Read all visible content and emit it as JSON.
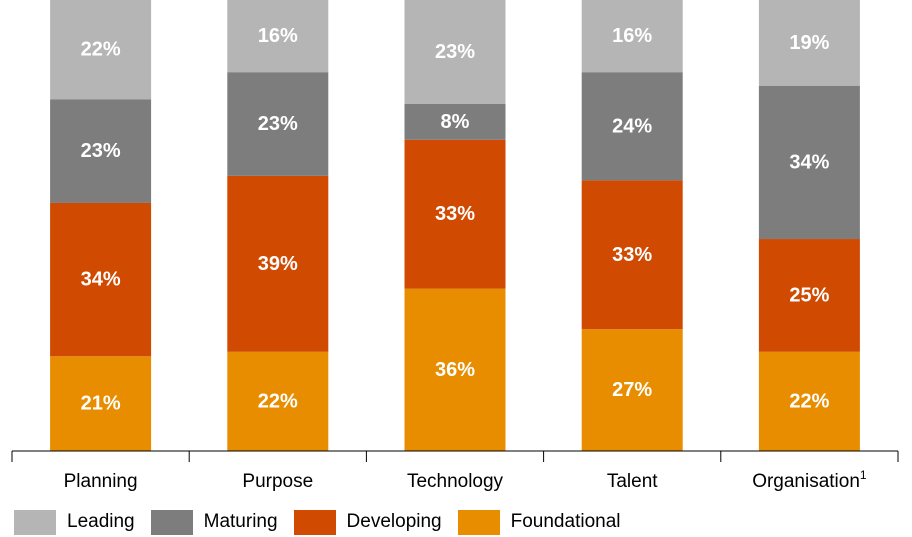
{
  "chart_data": {
    "type": "bar",
    "stacked": true,
    "categories": [
      "Planning",
      "Purpose",
      "Technology",
      "Talent",
      "Organisation"
    ],
    "category_superscripts": [
      "",
      "",
      "",
      "",
      "1"
    ],
    "series": [
      {
        "name": "Foundational",
        "color": "#E88D00",
        "values": [
          21,
          22,
          36,
          27,
          22
        ]
      },
      {
        "name": "Developing",
        "color": "#D04A02",
        "values": [
          34,
          39,
          33,
          33,
          25
        ]
      },
      {
        "name": "Maturing",
        "color": "#7D7D7D",
        "values": [
          23,
          23,
          8,
          24,
          34
        ]
      },
      {
        "name": "Leading",
        "color": "#B5B5B5",
        "values": [
          22,
          16,
          23,
          16,
          19
        ]
      }
    ],
    "value_suffix": "%",
    "legend": {
      "position": "bottom-left",
      "order": [
        "Leading",
        "Maturing",
        "Developing",
        "Foundational"
      ]
    },
    "grid": false
  }
}
